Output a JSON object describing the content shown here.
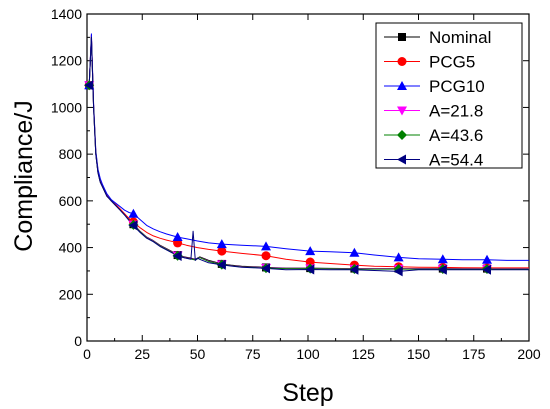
{
  "chart_data": {
    "type": "line",
    "title": "",
    "xlabel": "Step",
    "ylabel": "Compliance/J",
    "xlim": [
      0,
      200
    ],
    "ylim": [
      0,
      1400
    ],
    "xticks": [
      0,
      25,
      50,
      75,
      100,
      125,
      150,
      175,
      200
    ],
    "yticks": [
      0,
      200,
      400,
      600,
      800,
      1000,
      1200,
      1400
    ],
    "grid": false,
    "legend_position": "top-right",
    "series": [
      {
        "name": "Nominal",
        "color": "#000000",
        "marker": "square",
        "x": [
          1,
          2,
          3,
          4,
          5,
          6,
          7,
          8,
          9,
          10,
          11,
          13,
          15,
          17,
          19,
          21,
          24,
          27,
          30,
          33,
          36,
          39,
          41,
          44,
          47,
          49,
          51,
          55,
          61,
          65,
          70,
          75,
          81,
          90,
          101,
          110,
          121,
          130,
          141,
          150,
          161,
          170,
          181,
          190,
          200
        ],
        "y": [
          1095,
          1300,
          1000,
          800,
          720,
          680,
          660,
          640,
          620,
          610,
          600,
          580,
          560,
          540,
          520,
          500,
          470,
          445,
          430,
          410,
          395,
          380,
          368,
          360,
          355,
          350,
          360,
          345,
          330,
          325,
          320,
          318,
          315,
          312,
          312,
          311,
          310,
          310,
          310,
          310,
          310,
          310,
          310,
          310,
          310
        ],
        "marker_x": [
          1,
          21,
          41,
          61,
          81,
          101,
          121,
          141,
          161,
          181
        ]
      },
      {
        "name": "PCG5",
        "color": "#ff0000",
        "marker": "circle",
        "x": [
          1,
          2,
          3,
          4,
          5,
          6,
          7,
          8,
          9,
          10,
          11,
          13,
          15,
          17,
          19,
          21,
          24,
          27,
          30,
          33,
          36,
          39,
          41,
          45,
          50,
          55,
          61,
          70,
          81,
          90,
          101,
          110,
          121,
          130,
          141,
          150,
          161,
          170,
          181,
          190,
          200
        ],
        "y": [
          1095,
          1310,
          1010,
          810,
          730,
          690,
          665,
          645,
          625,
          612,
          600,
          585,
          565,
          545,
          525,
          510,
          485,
          465,
          450,
          440,
          432,
          425,
          420,
          410,
          400,
          392,
          385,
          375,
          365,
          350,
          338,
          332,
          325,
          320,
          318,
          316,
          315,
          314,
          313,
          313,
          313
        ],
        "marker_x": [
          1,
          21,
          41,
          61,
          81,
          101,
          121,
          141,
          161,
          181
        ]
      },
      {
        "name": "PCG10",
        "color": "#0000ff",
        "marker": "triangle-up",
        "x": [
          1,
          2,
          3,
          4,
          5,
          6,
          7,
          8,
          9,
          10,
          11,
          13,
          15,
          17,
          19,
          21,
          24,
          27,
          30,
          33,
          36,
          39,
          41,
          45,
          50,
          55,
          61,
          70,
          81,
          90,
          101,
          110,
          121,
          130,
          141,
          150,
          161,
          170,
          181,
          190,
          200
        ],
        "y": [
          1095,
          1315,
          1015,
          815,
          735,
          695,
          670,
          650,
          630,
          618,
          605,
          590,
          575,
          560,
          550,
          545,
          520,
          495,
          480,
          468,
          458,
          450,
          445,
          438,
          428,
          420,
          415,
          410,
          405,
          395,
          385,
          382,
          378,
          368,
          358,
          352,
          350,
          348,
          348,
          345,
          345
        ],
        "marker_x": [
          1,
          21,
          41,
          61,
          81,
          101,
          121,
          141,
          161,
          181
        ]
      },
      {
        "name": "A=21.8",
        "color": "#ff00ff",
        "marker": "triangle-down",
        "x": [
          1,
          2,
          3,
          4,
          5,
          6,
          7,
          8,
          9,
          10,
          11,
          13,
          15,
          17,
          19,
          21,
          24,
          27,
          30,
          33,
          36,
          39,
          41,
          44,
          47,
          49,
          51,
          55,
          61,
          65,
          70,
          75,
          81,
          90,
          101,
          110,
          121,
          130,
          141,
          150,
          161,
          170,
          181,
          190,
          200
        ],
        "y": [
          1095,
          1300,
          1000,
          800,
          720,
          680,
          660,
          640,
          620,
          610,
          600,
          580,
          560,
          540,
          518,
          498,
          468,
          443,
          428,
          408,
          393,
          378,
          366,
          358,
          352,
          348,
          358,
          342,
          328,
          323,
          318,
          316,
          313,
          311,
          311,
          310,
          309,
          309,
          309,
          309,
          309,
          309,
          309,
          309,
          309
        ],
        "marker_x": [
          1,
          21,
          41,
          61,
          81,
          101,
          121,
          141,
          161,
          181
        ]
      },
      {
        "name": "A=43.6",
        "color": "#008000",
        "marker": "diamond",
        "x": [
          1,
          2,
          3,
          4,
          5,
          6,
          7,
          8,
          9,
          10,
          11,
          13,
          15,
          17,
          19,
          21,
          24,
          27,
          30,
          33,
          36,
          39,
          41,
          44,
          47,
          49,
          51,
          55,
          61,
          65,
          70,
          75,
          81,
          90,
          101,
          110,
          121,
          130,
          141,
          150,
          161,
          170,
          181,
          190,
          200
        ],
        "y": [
          1095,
          1300,
          1000,
          800,
          720,
          680,
          660,
          640,
          620,
          610,
          600,
          580,
          560,
          540,
          517,
          497,
          467,
          442,
          427,
          407,
          392,
          377,
          365,
          357,
          351,
          347,
          357,
          341,
          327,
          322,
          317,
          315,
          312,
          310,
          310,
          309,
          308,
          308,
          308,
          308,
          308,
          308,
          308,
          308,
          308
        ],
        "marker_x": [
          1,
          21,
          41,
          61,
          81,
          101,
          121,
          141,
          161,
          181
        ]
      },
      {
        "name": "A=54.4",
        "color": "#000080",
        "marker": "triangle-left",
        "x": [
          1,
          2,
          3,
          4,
          5,
          6,
          7,
          8,
          9,
          10,
          11,
          13,
          15,
          17,
          19,
          21,
          24,
          27,
          30,
          33,
          36,
          39,
          41,
          44,
          47,
          48,
          49,
          50,
          51,
          55,
          61,
          65,
          70,
          75,
          81,
          90,
          101,
          110,
          121,
          130,
          141,
          150,
          161,
          170,
          181,
          190,
          200
        ],
        "y": [
          1095,
          1300,
          1000,
          800,
          720,
          680,
          660,
          640,
          620,
          610,
          600,
          580,
          560,
          540,
          516,
          495,
          465,
          440,
          425,
          405,
          390,
          375,
          364,
          356,
          350,
          470,
          345,
          355,
          350,
          335,
          326,
          321,
          316,
          314,
          311,
          305,
          306,
          305,
          305,
          302,
          298,
          305,
          305,
          305,
          305,
          305,
          305
        ],
        "marker_x": [
          1,
          21,
          41,
          61,
          81,
          101,
          121,
          141,
          161,
          181
        ]
      }
    ]
  }
}
